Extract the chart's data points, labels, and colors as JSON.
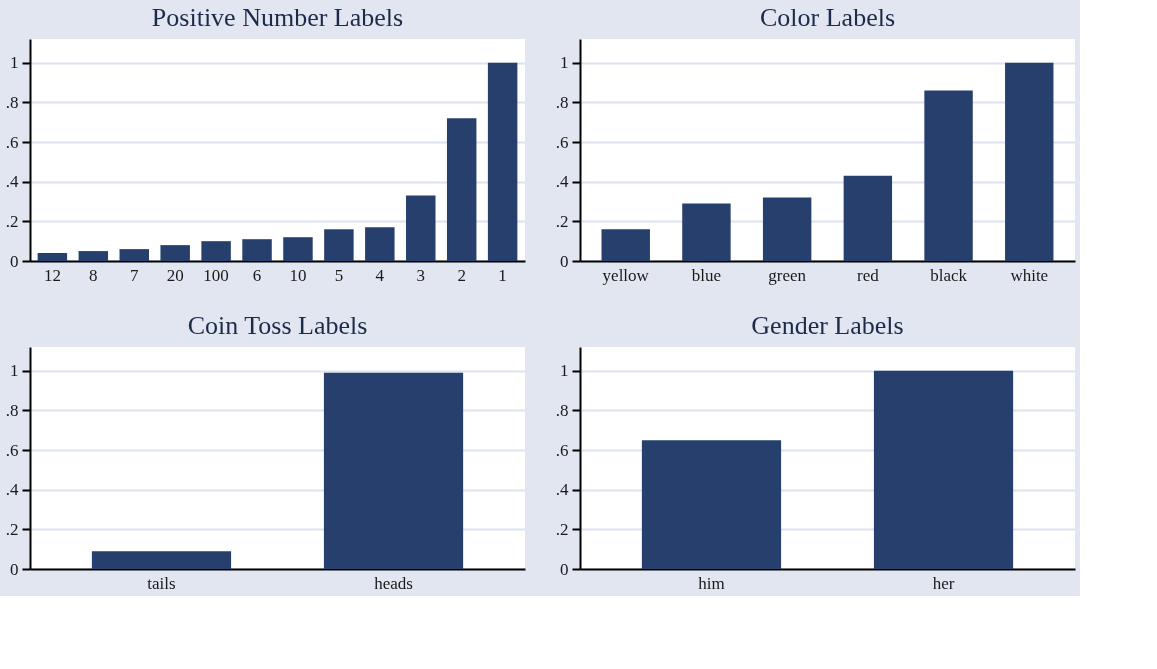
{
  "chart_data": [
    {
      "type": "bar",
      "title": "Positive Number Labels",
      "categories": [
        "12",
        "8",
        "7",
        "20",
        "100",
        "6",
        "10",
        "5",
        "4",
        "3",
        "2",
        "1"
      ],
      "values": [
        0.04,
        0.05,
        0.06,
        0.08,
        0.1,
        0.11,
        0.12,
        0.16,
        0.17,
        0.33,
        0.72,
        1.0
      ],
      "color": "#263f6d",
      "ylim": [
        0,
        1.12
      ],
      "yticks": [
        0,
        {
          "value": 0.2,
          "label": ".2"
        },
        {
          "value": 0.4,
          "label": ".4"
        },
        {
          "value": 0.6,
          "label": ".6"
        },
        {
          "value": 0.8,
          "label": ".8"
        },
        1
      ],
      "grid": "y"
    },
    {
      "type": "bar",
      "title": "Color Labels",
      "categories": [
        "yellow",
        "blue",
        "green",
        "red",
        "black",
        "white"
      ],
      "values": [
        0.16,
        0.29,
        0.32,
        0.43,
        0.86,
        1.0
      ],
      "color": "#263f6d",
      "ylim": [
        0,
        1.12
      ],
      "yticks": [
        0,
        {
          "value": 0.2,
          "label": ".2"
        },
        {
          "value": 0.4,
          "label": ".4"
        },
        {
          "value": 0.6,
          "label": ".6"
        },
        {
          "value": 0.8,
          "label": ".8"
        },
        1
      ],
      "grid": "y"
    },
    {
      "type": "bar",
      "title": "Coin Toss Labels",
      "categories": [
        "tails",
        "heads"
      ],
      "values": [
        0.09,
        0.99
      ],
      "color": "#263f6d",
      "ylim": [
        0,
        1.12
      ],
      "yticks": [
        0,
        {
          "value": 0.2,
          "label": ".2"
        },
        {
          "value": 0.4,
          "label": ".4"
        },
        {
          "value": 0.6,
          "label": ".6"
        },
        {
          "value": 0.8,
          "label": ".8"
        },
        1
      ],
      "grid": "y"
    },
    {
      "type": "bar",
      "title": "Gender Labels",
      "categories": [
        "him",
        "her"
      ],
      "values": [
        0.65,
        1.0
      ],
      "color": "#263f6d",
      "ylim": [
        0,
        1.12
      ],
      "yticks": [
        0,
        {
          "value": 0.2,
          "label": ".2"
        },
        {
          "value": 0.4,
          "label": ".4"
        },
        {
          "value": 0.6,
          "label": ".6"
        },
        {
          "value": 0.8,
          "label": ".8"
        },
        1
      ],
      "grid": "y"
    }
  ]
}
